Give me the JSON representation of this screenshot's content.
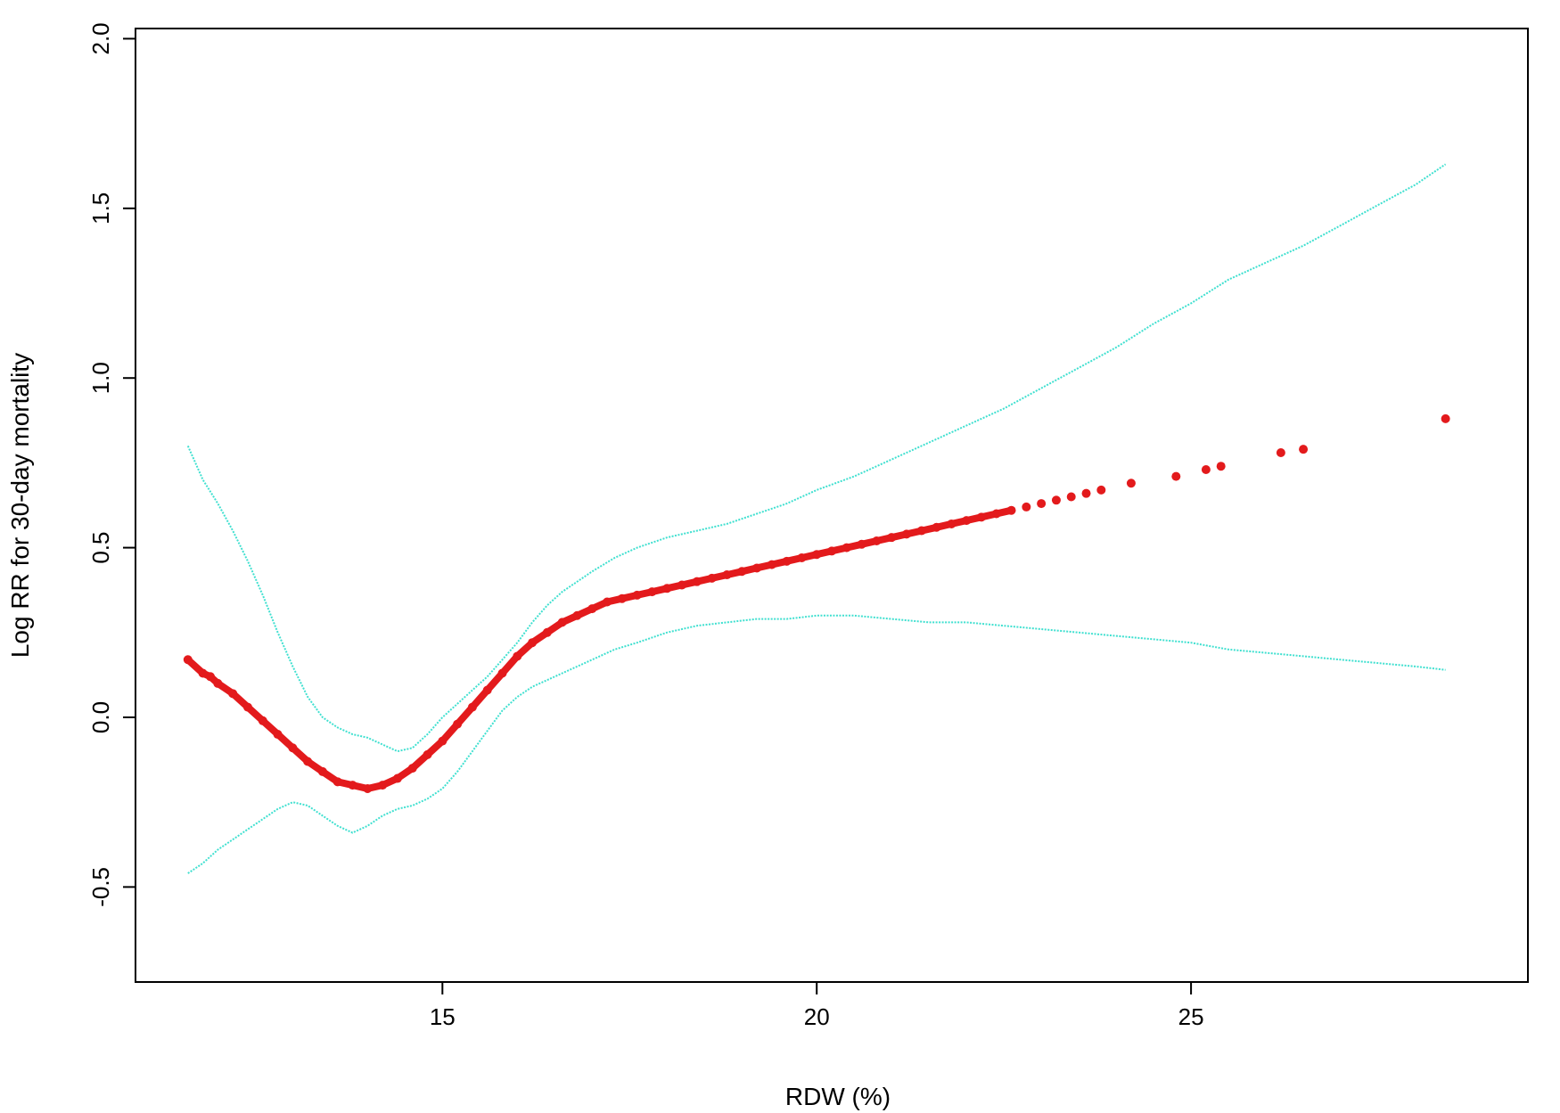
{
  "chart_data": {
    "type": "scatter",
    "title": "",
    "xlabel": "RDW (%)",
    "ylabel": "Log RR for 30-day mortality",
    "xlim": [
      10.9,
      29.5
    ],
    "ylim": [
      -0.78,
      2.03
    ],
    "xticks": [
      15,
      20,
      25
    ],
    "xtick_labels": [
      "15",
      "20",
      "25"
    ],
    "yticks": [
      -0.5,
      0.0,
      0.5,
      1.0,
      1.5,
      2.0
    ],
    "ytick_labels": [
      "-0.5",
      "0.0",
      "0.5",
      "1.0",
      "1.5",
      "2.0"
    ],
    "grid": false,
    "colors": {
      "estimate": "#e31a1c",
      "ci": "#40e0d0",
      "axis": "#000000"
    },
    "series": [
      {
        "role": "estimate",
        "x": [
          11.6,
          11.8,
          11.9,
          12.0,
          12.2,
          12.4,
          12.6,
          12.8,
          13.0,
          13.2,
          13.4,
          13.6,
          13.8,
          14.0,
          14.2,
          14.4,
          14.6,
          14.8,
          15.0,
          15.2,
          15.4,
          15.6,
          15.8,
          16.0,
          16.2,
          16.4,
          16.6,
          16.8,
          17.0,
          17.2,
          17.4,
          17.6,
          17.8,
          18.0,
          18.2,
          18.4,
          18.6,
          18.8,
          19.0,
          19.2,
          19.4,
          19.6,
          19.8,
          20.0,
          20.2,
          20.4,
          20.6,
          20.8,
          21.0,
          21.2,
          21.4,
          21.6,
          21.8,
          22.0,
          22.2,
          22.4,
          22.6,
          22.8,
          23.0,
          23.2,
          23.4,
          23.6,
          23.8,
          24.2,
          24.8,
          25.2,
          25.4,
          26.2,
          26.5,
          28.4
        ],
        "y": [
          0.17,
          0.13,
          0.12,
          0.1,
          0.07,
          0.03,
          -0.01,
          -0.05,
          -0.09,
          -0.13,
          -0.16,
          -0.19,
          -0.2,
          -0.21,
          -0.2,
          -0.18,
          -0.15,
          -0.11,
          -0.07,
          -0.02,
          0.03,
          0.08,
          0.13,
          0.18,
          0.22,
          0.25,
          0.28,
          0.3,
          0.32,
          0.34,
          0.35,
          0.36,
          0.37,
          0.38,
          0.39,
          0.4,
          0.41,
          0.42,
          0.43,
          0.44,
          0.45,
          0.46,
          0.47,
          0.48,
          0.49,
          0.5,
          0.51,
          0.52,
          0.53,
          0.54,
          0.55,
          0.56,
          0.57,
          0.58,
          0.59,
          0.6,
          0.61,
          0.62,
          0.63,
          0.64,
          0.65,
          0.66,
          0.67,
          0.69,
          0.71,
          0.73,
          0.74,
          0.78,
          0.79,
          0.88
        ]
      },
      {
        "role": "ci-upper",
        "x": [
          11.6,
          11.8,
          12.0,
          12.2,
          12.4,
          12.6,
          12.8,
          13.0,
          13.2,
          13.4,
          13.6,
          13.8,
          14.0,
          14.2,
          14.4,
          14.6,
          14.8,
          15.0,
          15.2,
          15.4,
          15.6,
          15.8,
          16.0,
          16.2,
          16.4,
          16.6,
          16.8,
          17.0,
          17.3,
          17.6,
          18.0,
          18.4,
          18.8,
          19.2,
          19.6,
          20.0,
          20.5,
          21.0,
          21.5,
          22.0,
          22.5,
          23.0,
          23.5,
          24.0,
          24.5,
          25.0,
          25.5,
          26.0,
          26.5,
          27.0,
          27.5,
          28.0,
          28.4
        ],
        "y": [
          0.8,
          0.7,
          0.63,
          0.55,
          0.46,
          0.36,
          0.25,
          0.15,
          0.06,
          0.0,
          -0.03,
          -0.05,
          -0.06,
          -0.08,
          -0.1,
          -0.09,
          -0.05,
          0.0,
          0.04,
          0.08,
          0.12,
          0.17,
          0.22,
          0.28,
          0.33,
          0.37,
          0.4,
          0.43,
          0.47,
          0.5,
          0.53,
          0.55,
          0.57,
          0.6,
          0.63,
          0.67,
          0.71,
          0.76,
          0.81,
          0.86,
          0.91,
          0.97,
          1.03,
          1.09,
          1.16,
          1.22,
          1.29,
          1.34,
          1.39,
          1.45,
          1.51,
          1.57,
          1.63
        ]
      },
      {
        "role": "ci-lower",
        "x": [
          11.6,
          11.8,
          12.0,
          12.2,
          12.4,
          12.6,
          12.8,
          13.0,
          13.2,
          13.4,
          13.6,
          13.8,
          14.0,
          14.2,
          14.4,
          14.6,
          14.8,
          15.0,
          15.2,
          15.4,
          15.6,
          15.8,
          16.0,
          16.2,
          16.4,
          16.6,
          16.8,
          17.0,
          17.3,
          17.6,
          18.0,
          18.4,
          18.8,
          19.2,
          19.6,
          20.0,
          20.5,
          21.0,
          21.5,
          22.0,
          22.5,
          23.0,
          23.5,
          24.0,
          24.5,
          25.0,
          25.5,
          26.0,
          26.5,
          27.0,
          27.5,
          28.0,
          28.4
        ],
        "y": [
          -0.46,
          -0.43,
          -0.39,
          -0.36,
          -0.33,
          -0.3,
          -0.27,
          -0.25,
          -0.26,
          -0.29,
          -0.32,
          -0.34,
          -0.32,
          -0.29,
          -0.27,
          -0.26,
          -0.24,
          -0.21,
          -0.16,
          -0.1,
          -0.04,
          0.02,
          0.06,
          0.09,
          0.11,
          0.13,
          0.15,
          0.17,
          0.2,
          0.22,
          0.25,
          0.27,
          0.28,
          0.29,
          0.29,
          0.3,
          0.3,
          0.29,
          0.28,
          0.28,
          0.27,
          0.26,
          0.25,
          0.24,
          0.23,
          0.22,
          0.2,
          0.19,
          0.18,
          0.17,
          0.16,
          0.15,
          0.14
        ]
      }
    ]
  }
}
